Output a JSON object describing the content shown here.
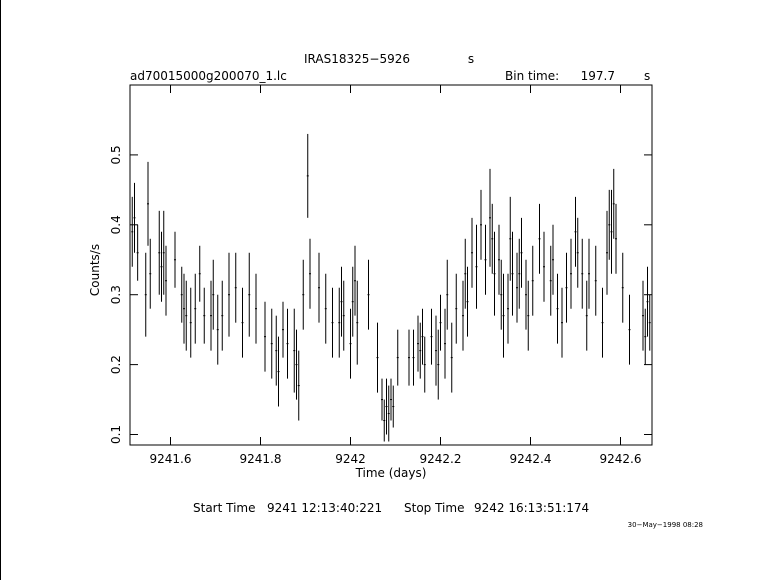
{
  "chart_data": {
    "type": "scatter",
    "title": "IRAS18325−5926",
    "title_unit": "s",
    "file_label": "ad70015000g200070_1.lc",
    "bin_time_label": "Bin time:",
    "bin_time_value": "197.7",
    "bin_time_unit": "s",
    "xlabel": "Time (days)",
    "ylabel": "Counts/s",
    "xlim": [
      9241.51,
      9242.67
    ],
    "ylim": [
      0.085,
      0.6
    ],
    "xticks": [
      9241.6,
      9241.8,
      9242,
      9242.2,
      9242.4,
      9242.6
    ],
    "xtick_labels": [
      "9241.6",
      "9241.8",
      "9242",
      "9242.2",
      "9242.4",
      "9242.6"
    ],
    "yticks": [
      0.1,
      0.2,
      0.3,
      0.4,
      0.5
    ],
    "ytick_labels": [
      "0.1",
      "0.2",
      "0.3",
      "0.4",
      "0.5"
    ],
    "grid": false,
    "points": [
      [
        9241.515,
        0.39,
        0.05
      ],
      [
        9241.52,
        0.41,
        0.05
      ],
      [
        9241.527,
        0.36,
        0.04
      ],
      [
        9241.545,
        0.3,
        0.06
      ],
      [
        9241.55,
        0.43,
        0.06
      ],
      [
        9241.555,
        0.33,
        0.05
      ],
      [
        9241.575,
        0.36,
        0.06
      ],
      [
        9241.58,
        0.34,
        0.05
      ],
      [
        9241.585,
        0.36,
        0.06
      ],
      [
        9241.59,
        0.32,
        0.05
      ],
      [
        9241.61,
        0.35,
        0.04
      ],
      [
        9241.625,
        0.3,
        0.04
      ],
      [
        9241.63,
        0.28,
        0.05
      ],
      [
        9241.635,
        0.27,
        0.05
      ],
      [
        9241.645,
        0.26,
        0.05
      ],
      [
        9241.655,
        0.28,
        0.05
      ],
      [
        9241.665,
        0.33,
        0.04
      ],
      [
        9241.675,
        0.27,
        0.04
      ],
      [
        9241.69,
        0.27,
        0.05
      ],
      [
        9241.695,
        0.3,
        0.05
      ],
      [
        9241.705,
        0.25,
        0.05
      ],
      [
        9241.715,
        0.27,
        0.05
      ],
      [
        9241.73,
        0.3,
        0.06
      ],
      [
        9241.745,
        0.31,
        0.05
      ],
      [
        9241.76,
        0.26,
        0.05
      ],
      [
        9241.775,
        0.3,
        0.06
      ],
      [
        9241.79,
        0.28,
        0.05
      ],
      [
        9241.81,
        0.24,
        0.05
      ],
      [
        9241.825,
        0.23,
        0.05
      ],
      [
        9241.835,
        0.22,
        0.05
      ],
      [
        9241.84,
        0.19,
        0.05
      ],
      [
        9241.85,
        0.25,
        0.04
      ],
      [
        9241.86,
        0.23,
        0.05
      ],
      [
        9241.875,
        0.22,
        0.06
      ],
      [
        9241.88,
        0.2,
        0.05
      ],
      [
        9241.885,
        0.17,
        0.05
      ],
      [
        9241.895,
        0.3,
        0.05
      ],
      [
        9241.905,
        0.47,
        0.06
      ],
      [
        9241.91,
        0.33,
        0.05
      ],
      [
        9241.93,
        0.31,
        0.05
      ],
      [
        9241.945,
        0.28,
        0.05
      ],
      [
        9241.96,
        0.26,
        0.05
      ],
      [
        9241.975,
        0.26,
        0.05
      ],
      [
        9241.98,
        0.29,
        0.05
      ],
      [
        9241.985,
        0.27,
        0.05
      ],
      [
        9242.0,
        0.23,
        0.05
      ],
      [
        9242.005,
        0.29,
        0.05
      ],
      [
        9242.01,
        0.32,
        0.05
      ],
      [
        9242.015,
        0.26,
        0.06
      ],
      [
        9242.04,
        0.3,
        0.05
      ],
      [
        9242.06,
        0.21,
        0.05
      ],
      [
        9242.07,
        0.15,
        0.03
      ],
      [
        9242.075,
        0.12,
        0.03
      ],
      [
        9242.08,
        0.14,
        0.04
      ],
      [
        9242.085,
        0.13,
        0.04
      ],
      [
        9242.09,
        0.15,
        0.03
      ],
      [
        9242.095,
        0.14,
        0.03
      ],
      [
        9242.105,
        0.21,
        0.04
      ],
      [
        9242.13,
        0.21,
        0.04
      ],
      [
        9242.14,
        0.21,
        0.04
      ],
      [
        9242.15,
        0.23,
        0.04
      ],
      [
        9242.155,
        0.22,
        0.04
      ],
      [
        9242.16,
        0.24,
        0.04
      ],
      [
        9242.165,
        0.2,
        0.04
      ],
      [
        9242.18,
        0.24,
        0.04
      ],
      [
        9242.19,
        0.22,
        0.05
      ],
      [
        9242.195,
        0.2,
        0.05
      ],
      [
        9242.2,
        0.26,
        0.04
      ],
      [
        9242.21,
        0.23,
        0.05
      ],
      [
        9242.215,
        0.3,
        0.05
      ],
      [
        9242.225,
        0.21,
        0.05
      ],
      [
        9242.235,
        0.28,
        0.05
      ],
      [
        9242.25,
        0.27,
        0.05
      ],
      [
        9242.255,
        0.33,
        0.05
      ],
      [
        9242.26,
        0.29,
        0.05
      ],
      [
        9242.27,
        0.36,
        0.05
      ],
      [
        9242.28,
        0.34,
        0.06
      ],
      [
        9242.29,
        0.4,
        0.05
      ],
      [
        9242.3,
        0.35,
        0.05
      ],
      [
        9242.31,
        0.41,
        0.07
      ],
      [
        9242.315,
        0.38,
        0.05
      ],
      [
        9242.32,
        0.33,
        0.06
      ],
      [
        9242.33,
        0.35,
        0.05
      ],
      [
        9242.335,
        0.3,
        0.05
      ],
      [
        9242.34,
        0.27,
        0.06
      ],
      [
        9242.35,
        0.28,
        0.05
      ],
      [
        9242.355,
        0.38,
        0.06
      ],
      [
        9242.36,
        0.33,
        0.06
      ],
      [
        9242.37,
        0.31,
        0.05
      ],
      [
        9242.375,
        0.33,
        0.05
      ],
      [
        9242.38,
        0.36,
        0.05
      ],
      [
        9242.39,
        0.3,
        0.05
      ],
      [
        9242.395,
        0.27,
        0.05
      ],
      [
        9242.405,
        0.32,
        0.05
      ],
      [
        9242.42,
        0.38,
        0.05
      ],
      [
        9242.43,
        0.34,
        0.05
      ],
      [
        9242.445,
        0.32,
        0.05
      ],
      [
        9242.45,
        0.35,
        0.05
      ],
      [
        9242.46,
        0.28,
        0.05
      ],
      [
        9242.47,
        0.26,
        0.05
      ],
      [
        9242.48,
        0.31,
        0.05
      ],
      [
        9242.49,
        0.33,
        0.05
      ],
      [
        9242.5,
        0.39,
        0.05
      ],
      [
        9242.505,
        0.36,
        0.05
      ],
      [
        9242.515,
        0.33,
        0.05
      ],
      [
        9242.525,
        0.27,
        0.05
      ],
      [
        9242.53,
        0.33,
        0.05
      ],
      [
        9242.545,
        0.32,
        0.05
      ],
      [
        9242.56,
        0.26,
        0.05
      ],
      [
        9242.57,
        0.36,
        0.06
      ],
      [
        9242.575,
        0.4,
        0.05
      ],
      [
        9242.58,
        0.39,
        0.06
      ],
      [
        9242.585,
        0.43,
        0.05
      ],
      [
        9242.59,
        0.38,
        0.05
      ],
      [
        9242.605,
        0.31,
        0.05
      ],
      [
        9242.62,
        0.25,
        0.05
      ],
      [
        9242.65,
        0.27,
        0.05
      ],
      [
        9242.655,
        0.24,
        0.04
      ],
      [
        9242.66,
        0.29,
        0.05
      ],
      [
        9242.665,
        0.26,
        0.04
      ]
    ]
  },
  "footer": {
    "start_label": "Start Time",
    "start_value": "9241  12:13:40:221",
    "stop_label": "Stop Time",
    "stop_value": "9242  16:13:51:174",
    "datestamp": "30−May−1998 08:28"
  }
}
